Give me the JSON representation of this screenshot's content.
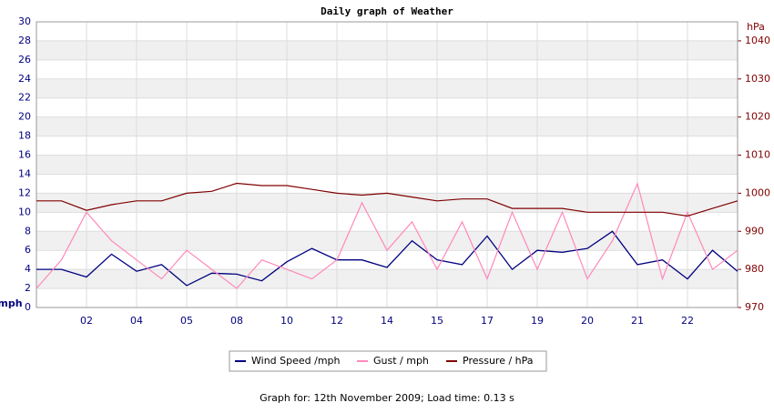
{
  "chart_data": {
    "type": "line",
    "title": "Daily graph of Weather",
    "y_label": "mph",
    "y2_label": "hPa",
    "x": [
      0,
      0.5,
      1,
      1.5,
      2,
      2.5,
      3,
      3.5,
      4,
      4.5,
      5,
      5.5,
      6,
      6.5,
      7,
      7.5,
      8,
      8.5,
      9,
      9.5,
      10,
      10.5,
      11,
      11.5,
      12,
      12.5,
      13,
      13.5,
      14
    ],
    "xlim": [
      0,
      14
    ],
    "xticks": [
      {
        "value": 1,
        "label": "02"
      },
      {
        "value": 2,
        "label": "04"
      },
      {
        "value": 3,
        "label": "05"
      },
      {
        "value": 4,
        "label": "08"
      },
      {
        "value": 5,
        "label": "10"
      },
      {
        "value": 6,
        "label": "12"
      },
      {
        "value": 7,
        "label": "14"
      },
      {
        "value": 8,
        "label": "15"
      },
      {
        "value": 9,
        "label": "17"
      },
      {
        "value": 10,
        "label": "19"
      },
      {
        "value": 11,
        "label": "20"
      },
      {
        "value": 12,
        "label": "21"
      },
      {
        "value": 13,
        "label": "22"
      }
    ],
    "ylim": [
      0,
      30
    ],
    "yticks": [
      0,
      2,
      4,
      6,
      8,
      10,
      12,
      14,
      16,
      18,
      20,
      22,
      24,
      26,
      28,
      30
    ],
    "y2lim": [
      970,
      1045
    ],
    "y2ticks": [
      970,
      980,
      990,
      1000,
      1010,
      1020,
      1030,
      1040
    ],
    "grid": true,
    "series": [
      {
        "name": "Wind Speed /mph",
        "color": "#000080",
        "values": [
          4,
          4,
          3.2,
          5.6,
          3.8,
          4.5,
          2.3,
          3.6,
          3.5,
          2.8,
          4.8,
          6.2,
          5,
          5,
          4.2,
          7,
          5,
          4.5,
          7.5,
          4,
          6,
          5.8,
          6.2,
          8,
          4.5,
          5,
          3,
          6,
          3.8
        ]
      },
      {
        "name": "Gust / mph",
        "color": "#ff88bb",
        "values": [
          2,
          5,
          10,
          7,
          5,
          3,
          6,
          4,
          2,
          5,
          4,
          3,
          5,
          11,
          6,
          9,
          4,
          9,
          3,
          10,
          4,
          10,
          3,
          7,
          13,
          3,
          10,
          4,
          6
        ]
      },
      {
        "name": "Pressure / hPa",
        "color": "#800000",
        "axis": "y2",
        "values": [
          998,
          998,
          995.5,
          997,
          998,
          998,
          1000,
          1000.5,
          1002.6,
          1002,
          1002,
          1001,
          1000,
          999.5,
          1000,
          999,
          998,
          998.5,
          998.5,
          996,
          996,
          996,
          995,
          995,
          995,
          995,
          994,
          996,
          998
        ]
      }
    ],
    "footer": "Graph for: 12th November 2009; Load time: 0.13 s"
  }
}
